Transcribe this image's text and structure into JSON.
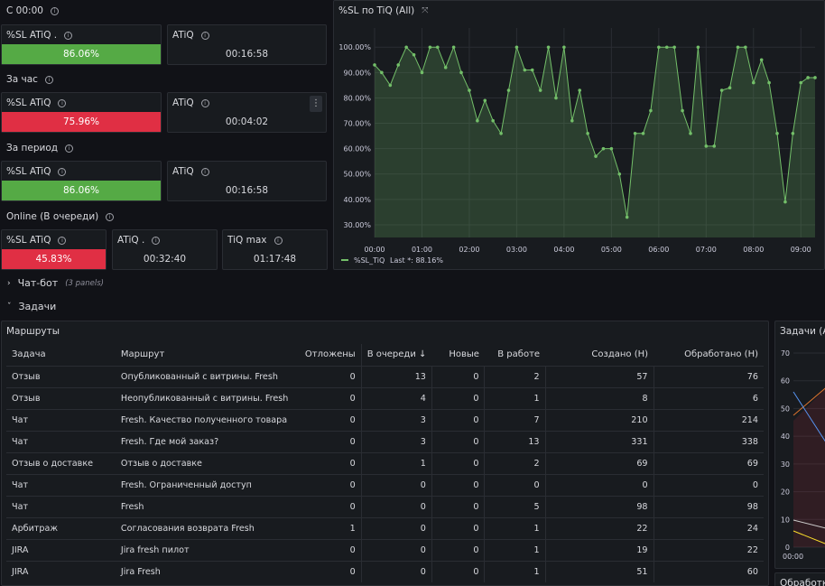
{
  "group_since_midnight": "С 00:00",
  "group_hour": "За час",
  "group_period": "За период",
  "group_online": "Online (В очереди)",
  "stats": {
    "sl1": {
      "title": "%SL ATiQ .",
      "value": "86.06%"
    },
    "atiq1": {
      "title": "ATiQ",
      "value": "00:16:58"
    },
    "sl2": {
      "title": "%SL ATiQ",
      "value": "75.96%"
    },
    "atiq2": {
      "title": "ATiQ",
      "value": "00:04:02"
    },
    "sl3": {
      "title": "%SL ATiQ",
      "value": "86.06%"
    },
    "atiq3": {
      "title": "ATiQ",
      "value": "00:16:58"
    },
    "sl4": {
      "title": "%SL ATiQ",
      "value": "45.83%"
    },
    "atiq4": {
      "title": "ATiQ .",
      "value": "00:32:40"
    },
    "tiqmax": {
      "title": "TiQ max",
      "value": "01:17:48"
    }
  },
  "colors": {
    "green": "#55aa45",
    "red": "#e02f44",
    "line": "#73bf69"
  },
  "chatbot_row": {
    "title": "Чат-бот",
    "sub": "(3 panels)"
  },
  "tasks_row": {
    "title": "Задачи"
  },
  "routes_panel": {
    "title": "Маршруты",
    "columns": [
      "Задача",
      "Маршрут",
      "Отложены",
      "В очереди",
      "Новые",
      "В работе",
      "Создано (Н)",
      "Обработано (Н)"
    ],
    "sort_icon": "↓",
    "rows": [
      [
        "Отзыв",
        "Опубликованный с витрины. Fresh",
        "0",
        "13",
        "0",
        "2",
        "57",
        "76"
      ],
      [
        "Отзыв",
        "Неопубликованный с витрины. Fresh",
        "0",
        "4",
        "0",
        "1",
        "8",
        "6"
      ],
      [
        "Чат",
        "Fresh. Качество полученного товара",
        "0",
        "3",
        "0",
        "7",
        "210",
        "214"
      ],
      [
        "Чат",
        "Fresh. Где мой заказ?",
        "0",
        "3",
        "0",
        "13",
        "331",
        "338"
      ],
      [
        "Отзыв о доставке",
        "Отзыв о доставке",
        "0",
        "1",
        "0",
        "2",
        "69",
        "69"
      ],
      [
        "Чат",
        "Fresh. Ограниченный доступ",
        "0",
        "0",
        "0",
        "0",
        "0",
        "0"
      ],
      [
        "Чат",
        "Fresh",
        "0",
        "0",
        "0",
        "5",
        "98",
        "98"
      ],
      [
        "Арбитраж",
        "Согласования возврата Fresh",
        "1",
        "0",
        "0",
        "1",
        "22",
        "24"
      ],
      [
        "JIRA",
        "Jira fresh пилот",
        "0",
        "0",
        "0",
        "1",
        "19",
        "22"
      ],
      [
        "JIRA",
        "Jira Fresh",
        "0",
        "0",
        "0",
        "1",
        "51",
        "60"
      ]
    ]
  },
  "tasks_panel": {
    "title": "Задачи (All",
    "y_ticks": [
      "70",
      "60",
      "50",
      "40",
      "30",
      "20",
      "10",
      "0"
    ],
    "x_tick": "00:00"
  },
  "processed_panel": {
    "title": "Обработк"
  },
  "chart_data": {
    "type": "area",
    "title": "%SL по TiQ (All)",
    "legend": "%SL_TiQ",
    "legend_last": "Last *: 88.16%",
    "legend_placement": "bottom-left",
    "x_ticks": [
      "00:00",
      "01:00",
      "02:00",
      "03:00",
      "04:00",
      "05:00",
      "06:00",
      "07:00",
      "08:00",
      "09:00"
    ],
    "y_ticks": [
      "100.00%",
      "90.00%",
      "80.00%",
      "70.00%",
      "60.00%",
      "50.00%",
      "40.00%",
      "30.00%"
    ],
    "ylim": [
      25,
      104
    ],
    "xlim": [
      0,
      9.3
    ],
    "grid": true,
    "series": [
      {
        "name": "%SL_TiQ",
        "x": [
          0,
          0.15,
          0.33,
          0.5,
          0.67,
          0.83,
          1.0,
          1.17,
          1.33,
          1.5,
          1.67,
          1.83,
          2.0,
          2.17,
          2.33,
          2.5,
          2.67,
          2.83,
          3.0,
          3.17,
          3.33,
          3.5,
          3.67,
          3.83,
          4.0,
          4.17,
          4.33,
          4.5,
          4.67,
          4.83,
          5.0,
          5.17,
          5.33,
          5.5,
          5.67,
          5.83,
          6.0,
          6.17,
          6.33,
          6.5,
          6.67,
          6.83,
          7.0,
          7.17,
          7.33,
          7.5,
          7.67,
          7.83,
          8.0,
          8.17,
          8.33,
          8.5,
          8.67,
          8.83,
          9.0,
          9.15,
          9.3
        ],
        "y": [
          93,
          90,
          85,
          93,
          100,
          97,
          90,
          100,
          100,
          92,
          100,
          90,
          83,
          71,
          79,
          71,
          66,
          83,
          100,
          91,
          91,
          83,
          100,
          80,
          100,
          71,
          83,
          66,
          57,
          60,
          60,
          50,
          33,
          66,
          66,
          75,
          100,
          100,
          100,
          75,
          66,
          100,
          61,
          61,
          83,
          84,
          100,
          100,
          86,
          95,
          86,
          66,
          39,
          66,
          86,
          88,
          88
        ]
      }
    ]
  }
}
